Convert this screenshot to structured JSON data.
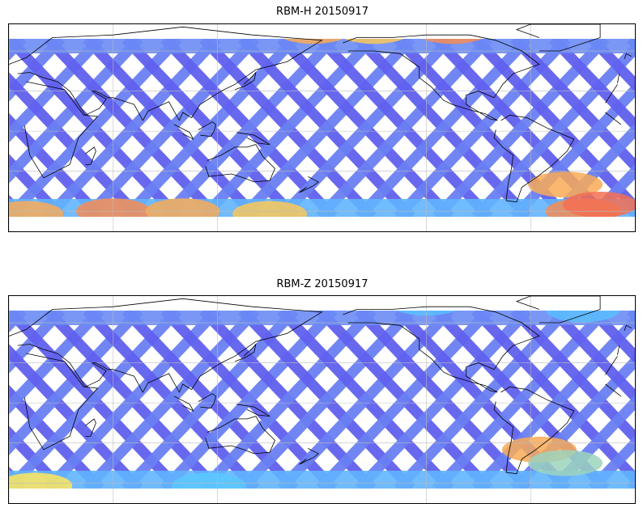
{
  "panels": [
    {
      "title": "RBM-H 20150917",
      "hot_spots": [
        {
          "lon": -30,
          "lat": -60,
          "level": 0.9
        },
        {
          "lon": 10,
          "lat": -62,
          "level": 0.85
        },
        {
          "lon": 60,
          "lat": -60,
          "level": 0.9
        },
        {
          "lon": 100,
          "lat": -60,
          "level": 0.85
        },
        {
          "lon": 150,
          "lat": -62,
          "level": 0.8
        },
        {
          "lon": 175,
          "lat": 75,
          "level": 0.85
        },
        {
          "lon": -150,
          "lat": 75,
          "level": 0.8
        },
        {
          "lon": -105,
          "lat": 75,
          "level": 0.9
        },
        {
          "lon": -40,
          "lat": -40,
          "level": 0.85
        },
        {
          "lon": -20,
          "lat": -55,
          "level": 0.95
        }
      ]
    },
    {
      "title": "RBM-Z 20150917",
      "hot_spots": [
        {
          "lon": -55,
          "lat": -35,
          "level": 0.85
        },
        {
          "lon": -40,
          "lat": -45,
          "level": 0.6
        },
        {
          "lon": 15,
          "lat": -62,
          "level": 0.75
        },
        {
          "lon": 115,
          "lat": -62,
          "level": 0.5
        },
        {
          "lon": -120,
          "lat": 75,
          "level": 0.45
        },
        {
          "lon": -30,
          "lat": 70,
          "level": 0.45
        }
      ]
    }
  ],
  "colors": {
    "track_low": "#6060ee",
    "track_mid": "#5ac8ff",
    "track_high": "#f05050",
    "coastline": "#000000",
    "grid": "#bbbbbb"
  },
  "map": {
    "projection": "plate-carree",
    "central_longitude": 180,
    "lat_extent": [
      -75,
      80
    ]
  }
}
